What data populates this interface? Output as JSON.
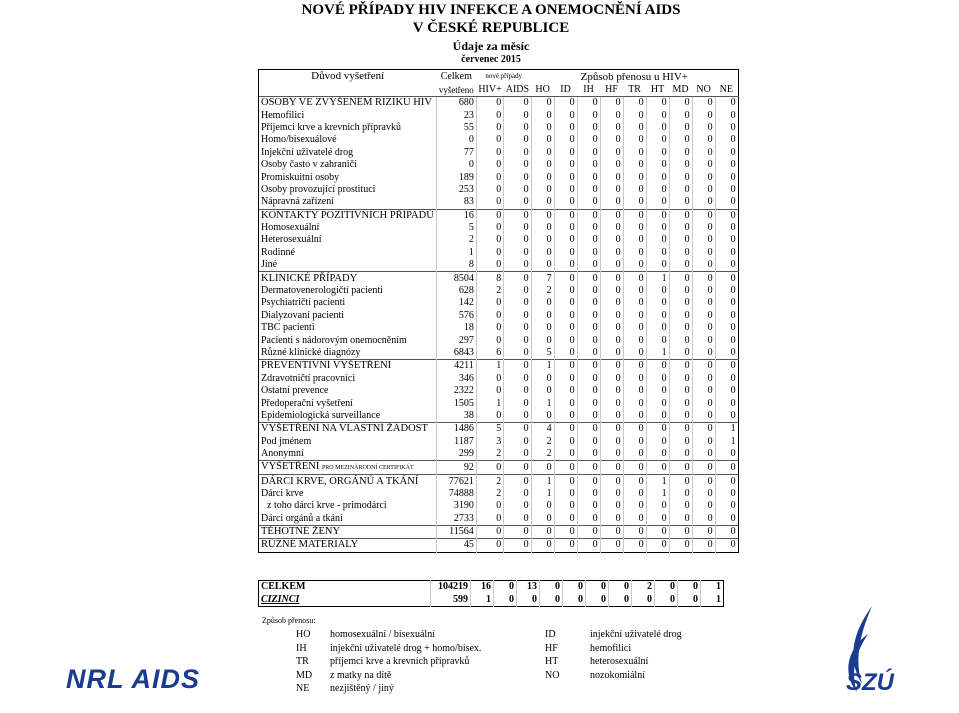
{
  "header": {
    "title": [
      "NOVÉ PŘÍPADY HIV INFEKCE A ONEMOCNĚNÍ AIDS",
      "V ČESKÉ REPUBLICE",
      "Údaje za měsíc",
      "červenec 2015"
    ]
  },
  "table": {
    "columns": {
      "reason": "Důvod vyšetření",
      "total": [
        "Celkem",
        "vyšetřeno"
      ],
      "new_cases": "nové případy",
      "hiv": "HIV+",
      "aids": "AIDS",
      "transmission": "Způsob přenosu u HIV+",
      "codes": [
        "HO",
        "ID",
        "IH",
        "HF",
        "TR",
        "HT",
        "MD",
        "NO",
        "NE"
      ]
    },
    "rows": [
      {
        "label": "OSOBY VE ZVÝŠENÉM RIZIKU HIV",
        "values": [
          680,
          0,
          0,
          0,
          0,
          0,
          0,
          0,
          0,
          0,
          0,
          0
        ]
      },
      {
        "label": "Hemofilici",
        "values": [
          23,
          0,
          0,
          0,
          0,
          0,
          0,
          0,
          0,
          0,
          0,
          0
        ]
      },
      {
        "label": "Příjemci krve a krevních přípravků",
        "values": [
          55,
          0,
          0,
          0,
          0,
          0,
          0,
          0,
          0,
          0,
          0,
          0
        ]
      },
      {
        "label": "Homo/bisexuálové",
        "values": [
          0,
          0,
          0,
          0,
          0,
          0,
          0,
          0,
          0,
          0,
          0,
          0
        ]
      },
      {
        "label": "Injekční uživatelé drog",
        "values": [
          77,
          0,
          0,
          0,
          0,
          0,
          0,
          0,
          0,
          0,
          0,
          0
        ]
      },
      {
        "label": "Osoby často v zahraničí",
        "values": [
          0,
          0,
          0,
          0,
          0,
          0,
          0,
          0,
          0,
          0,
          0,
          0
        ]
      },
      {
        "label": "Promiskuitní osoby",
        "values": [
          189,
          0,
          0,
          0,
          0,
          0,
          0,
          0,
          0,
          0,
          0,
          0
        ]
      },
      {
        "label": "Osoby provozující prostituci",
        "values": [
          253,
          0,
          0,
          0,
          0,
          0,
          0,
          0,
          0,
          0,
          0,
          0
        ]
      },
      {
        "label": "Nápravná zařízení",
        "values": [
          83,
          0,
          0,
          0,
          0,
          0,
          0,
          0,
          0,
          0,
          0,
          0
        ]
      },
      {
        "label": "KONTAKTY POZITIVNÍCH PŘÍPADŮ",
        "values": [
          16,
          0,
          0,
          0,
          0,
          0,
          0,
          0,
          0,
          0,
          0,
          0
        ]
      },
      {
        "label": "Homosexuální",
        "values": [
          5,
          0,
          0,
          0,
          0,
          0,
          0,
          0,
          0,
          0,
          0,
          0
        ]
      },
      {
        "label": "Heterosexuální",
        "values": [
          2,
          0,
          0,
          0,
          0,
          0,
          0,
          0,
          0,
          0,
          0,
          0
        ]
      },
      {
        "label": "Rodinné",
        "values": [
          1,
          0,
          0,
          0,
          0,
          0,
          0,
          0,
          0,
          0,
          0,
          0
        ]
      },
      {
        "label": "Jiné",
        "values": [
          8,
          0,
          0,
          0,
          0,
          0,
          0,
          0,
          0,
          0,
          0,
          0
        ]
      },
      {
        "label": "KLINICKÉ PŘÍPADY",
        "values": [
          8504,
          8,
          0,
          7,
          0,
          0,
          0,
          0,
          1,
          0,
          0,
          0
        ]
      },
      {
        "label": "Dermatovenerologičtí pacienti",
        "values": [
          628,
          2,
          0,
          2,
          0,
          0,
          0,
          0,
          0,
          0,
          0,
          0
        ]
      },
      {
        "label": "Psychiatričtí pacienti",
        "values": [
          142,
          0,
          0,
          0,
          0,
          0,
          0,
          0,
          0,
          0,
          0,
          0
        ]
      },
      {
        "label": "Dialyzovaní pacienti",
        "values": [
          576,
          0,
          0,
          0,
          0,
          0,
          0,
          0,
          0,
          0,
          0,
          0
        ]
      },
      {
        "label": "TBC pacienti",
        "values": [
          18,
          0,
          0,
          0,
          0,
          0,
          0,
          0,
          0,
          0,
          0,
          0
        ]
      },
      {
        "label": "Pacienti s nádorovým onemocněním",
        "values": [
          297,
          0,
          0,
          0,
          0,
          0,
          0,
          0,
          0,
          0,
          0,
          0
        ]
      },
      {
        "label": "Různé klinické diagnózy",
        "values": [
          6843,
          6,
          0,
          5,
          0,
          0,
          0,
          0,
          1,
          0,
          0,
          0
        ]
      },
      {
        "label": "PREVENTIVNÍ VYŠETŘENÍ",
        "values": [
          4211,
          1,
          0,
          1,
          0,
          0,
          0,
          0,
          0,
          0,
          0,
          0
        ]
      },
      {
        "label": "Zdravotničtí pracovníci",
        "values": [
          346,
          0,
          0,
          0,
          0,
          0,
          0,
          0,
          0,
          0,
          0,
          0
        ]
      },
      {
        "label": "Ostatní prevence",
        "values": [
          2322,
          0,
          0,
          0,
          0,
          0,
          0,
          0,
          0,
          0,
          0,
          0
        ]
      },
      {
        "label": "Předoperační vyšetření",
        "values": [
          1505,
          1,
          0,
          1,
          0,
          0,
          0,
          0,
          0,
          0,
          0,
          0
        ]
      },
      {
        "label": "Epidemiologická surveillance",
        "values": [
          38,
          0,
          0,
          0,
          0,
          0,
          0,
          0,
          0,
          0,
          0,
          0
        ]
      },
      {
        "label": "VYŠETŘENÍ NA VLASTNÍ ŽÁDOST",
        "values": [
          1486,
          5,
          0,
          4,
          0,
          0,
          0,
          0,
          0,
          0,
          0,
          1
        ]
      },
      {
        "label": "Pod jménem",
        "values": [
          1187,
          3,
          0,
          2,
          0,
          0,
          0,
          0,
          0,
          0,
          0,
          1
        ]
      },
      {
        "label": "Anonymní",
        "values": [
          299,
          2,
          0,
          2,
          0,
          0,
          0,
          0,
          0,
          0,
          0,
          0
        ]
      },
      {
        "label": "VYŠETŘENÍ",
        "label_small": "PRO MEZINÁRODNÍ CERTIFIKÁT",
        "values": [
          92,
          0,
          0,
          0,
          0,
          0,
          0,
          0,
          0,
          0,
          0,
          0
        ]
      },
      {
        "label": "DÁRCI KRVE, ORGÁNŮ A TKÁNÍ",
        "values": [
          77621,
          2,
          0,
          1,
          0,
          0,
          0,
          0,
          1,
          0,
          0,
          0
        ]
      },
      {
        "label": "Dárci krve",
        "values": [
          74888,
          2,
          0,
          1,
          0,
          0,
          0,
          0,
          1,
          0,
          0,
          0
        ]
      },
      {
        "label": "z toho dárci krve - primodárci",
        "values": [
          3190,
          0,
          0,
          0,
          0,
          0,
          0,
          0,
          0,
          0,
          0,
          0
        ]
      },
      {
        "label": "Dárci orgánů a tkání",
        "values": [
          2733,
          0,
          0,
          0,
          0,
          0,
          0,
          0,
          0,
          0,
          0,
          0
        ]
      },
      {
        "label": "TĚHOTNÉ ŽENY",
        "values": [
          11564,
          0,
          0,
          0,
          0,
          0,
          0,
          0,
          0,
          0,
          0,
          0
        ]
      },
      {
        "label": "RŮZNÉ MATERIÁLY",
        "values": [
          45,
          0,
          0,
          0,
          0,
          0,
          0,
          0,
          0,
          0,
          0,
          0
        ]
      }
    ],
    "totals": [
      {
        "label": "CELKEM",
        "values": [
          104219,
          16,
          0,
          13,
          0,
          0,
          0,
          0,
          2,
          0,
          0,
          1
        ]
      },
      {
        "label": "CIZINCI",
        "values": [
          599,
          1,
          0,
          0,
          0,
          0,
          0,
          0,
          0,
          0,
          0,
          1
        ]
      }
    ]
  },
  "legend": {
    "title": "Způsob přenosu:",
    "items": [
      {
        "code": "HO",
        "text": "homosexuální / bisexuální"
      },
      {
        "code": "ID",
        "text": "injekční uživatelé drog"
      },
      {
        "code": "IH",
        "text": "injekční uživatelé drog + homo/bisex."
      },
      {
        "code": "HF",
        "text": "hemofilici"
      },
      {
        "code": "TR",
        "text": "příjemci krve a krevních přípravků"
      },
      {
        "code": "HT",
        "text": "heterosexuální"
      },
      {
        "code": "MD",
        "text": "z matky na dítě"
      },
      {
        "code": "NO",
        "text": "nozokomiální"
      },
      {
        "code": "NE",
        "text": "nezjištěný / jiný"
      }
    ]
  },
  "logos": {
    "left": "NRL AIDS",
    "right": "SZÚ"
  }
}
